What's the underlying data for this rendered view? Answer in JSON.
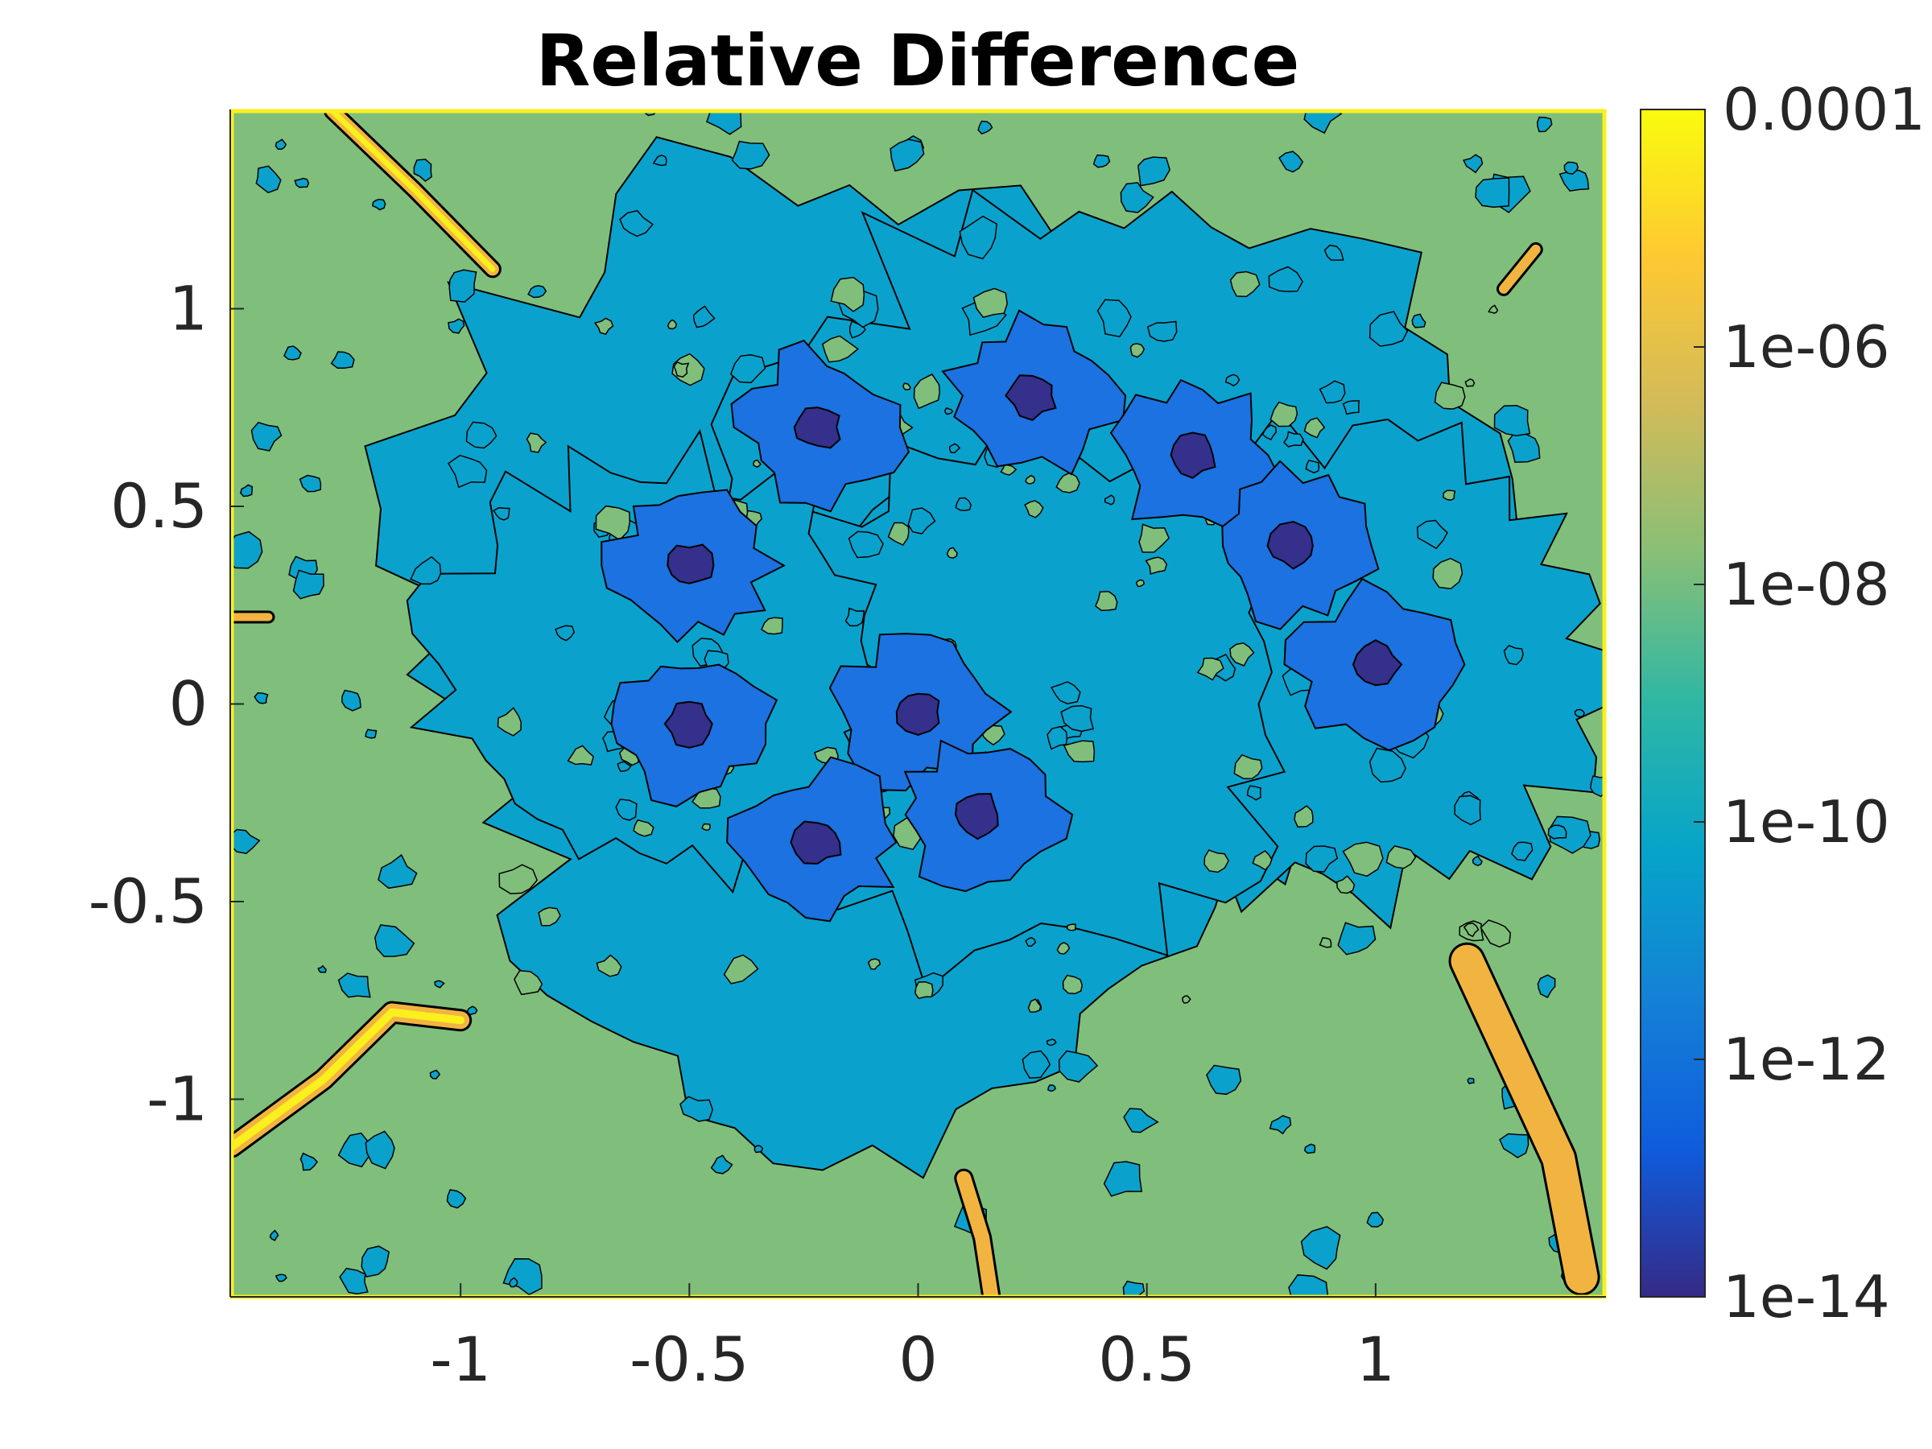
{
  "chart_data": {
    "type": "contour",
    "title": "Relative Difference",
    "xlabel": "",
    "ylabel": "",
    "xlim": [
      -1.5,
      1.5
    ],
    "ylim": [
      -1.5,
      1.5
    ],
    "x_ticks": [
      {
        "value": -1,
        "label": "-1"
      },
      {
        "value": -0.5,
        "label": "-0.5"
      },
      {
        "value": 0,
        "label": "0"
      },
      {
        "value": 0.5,
        "label": "0.5"
      },
      {
        "value": 1,
        "label": "1"
      }
    ],
    "y_ticks": [
      {
        "value": 1,
        "label": "1"
      },
      {
        "value": 0.5,
        "label": "0.5"
      },
      {
        "value": 0,
        "label": "0"
      },
      {
        "value": -0.5,
        "label": "-0.5"
      },
      {
        "value": -1,
        "label": "-1"
      }
    ],
    "colorbar": {
      "scale": "log",
      "range": [
        1e-14,
        0.0001
      ],
      "ticks": [
        {
          "value": 0.0001,
          "label": "0.0001"
        },
        {
          "value": 1e-06,
          "label": "1e-06"
        },
        {
          "value": 1e-08,
          "label": "1e-08"
        },
        {
          "value": 1e-10,
          "label": "1e-10"
        },
        {
          "value": 1e-12,
          "label": "1e-12"
        },
        {
          "value": 1e-14,
          "label": "1e-14"
        }
      ],
      "colormap": [
        "#352a87",
        "#0f5cdd",
        "#1481d6",
        "#06a4ca",
        "#2eb7a4",
        "#87bf77",
        "#d1bb59",
        "#fec832",
        "#f9fb0e"
      ]
    },
    "level_colors": {
      "background_1e-8": "#7fbf7b",
      "band_1e-10": "#0aa2cd",
      "band_1e-12": "#1b72e0",
      "band_1e-14": "#34308c",
      "band_1e-6": "#f2b441",
      "band_1e-4": "#f9f01d"
    },
    "minima": [
      {
        "x": -0.5,
        "y": 0.35
      },
      {
        "x": -0.22,
        "y": 0.7
      },
      {
        "x": 0.25,
        "y": 0.78
      },
      {
        "x": 0.6,
        "y": 0.63
      },
      {
        "x": 0.82,
        "y": 0.4
      },
      {
        "x": 1.0,
        "y": 0.1
      },
      {
        "x": 0.0,
        "y": -0.02
      },
      {
        "x": -0.5,
        "y": -0.05
      },
      {
        "x": -0.22,
        "y": -0.35
      },
      {
        "x": 0.13,
        "y": -0.28
      }
    ],
    "high_regions": [
      {
        "x": -1.15,
        "y": 1.25,
        "value": 1e-05
      },
      {
        "x": -1.3,
        "y": -1.05,
        "value": 0.0001
      },
      {
        "x": 1.35,
        "y": -1.1,
        "value": 1e-06
      },
      {
        "x": 0.15,
        "y": -1.35,
        "value": 1e-06
      }
    ]
  }
}
